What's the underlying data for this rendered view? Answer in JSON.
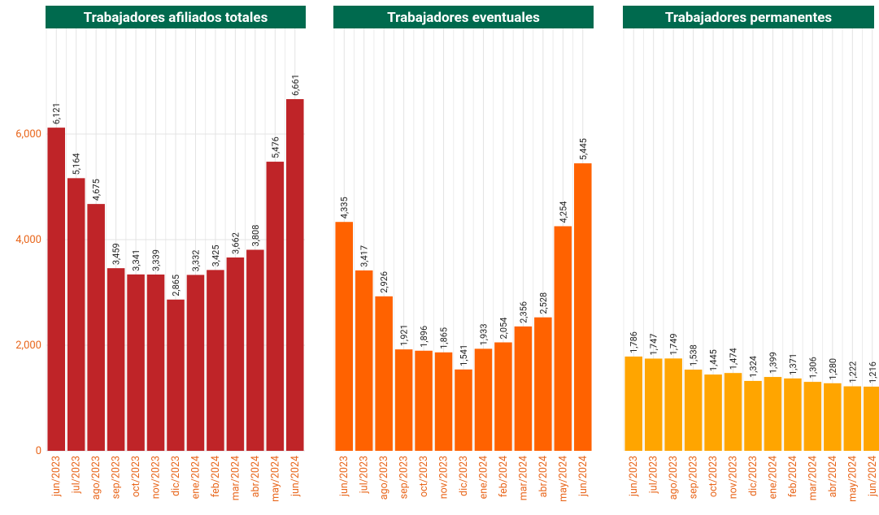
{
  "chart_data": [
    {
      "type": "bar",
      "title": "Trabajadores afiliados totales",
      "categories": [
        "jun/2023",
        "jul/2023",
        "ago/2023",
        "sep/2023",
        "oct/2023",
        "nov/2023",
        "dic/2023",
        "ene/2024",
        "feb/2024",
        "mar/2024",
        "abr/2024",
        "may/2024",
        "jun/2024"
      ],
      "values": [
        6121,
        5164,
        4675,
        3459,
        3341,
        3339,
        2865,
        3332,
        3425,
        3662,
        3808,
        5476,
        6661
      ],
      "value_labels": [
        "6,121",
        "5,164",
        "4,675",
        "3,459",
        "3,341",
        "3,339",
        "2,865",
        "3,332",
        "3,425",
        "3,662",
        "3,808",
        "5,476",
        "6,661"
      ],
      "color": "#bf2428",
      "ylim": [
        0,
        8000
      ],
      "yticks": [
        0,
        {
          "value": 2000,
          "label": "2,000"
        },
        {
          "value": 4000,
          "label": "4,000"
        },
        {
          "value": 6000,
          "label": "6,000"
        }
      ],
      "grid": true
    },
    {
      "type": "bar",
      "title": "Trabajadores eventuales",
      "categories": [
        "jun/2023",
        "jul/2023",
        "ago/2023",
        "sep/2023",
        "oct/2023",
        "nov/2023",
        "dic/2023",
        "ene/2024",
        "feb/2024",
        "mar/2024",
        "abr/2024",
        "may/2024",
        "jun/2024"
      ],
      "values": [
        4335,
        3417,
        2926,
        1921,
        1896,
        1865,
        1541,
        1933,
        2054,
        2356,
        2528,
        4254,
        5445
      ],
      "value_labels": [
        "4,335",
        "3,417",
        "2,926",
        "1,921",
        "1,896",
        "1,865",
        "1,541",
        "1,933",
        "2,054",
        "2,356",
        "2,528",
        "4,254",
        "5,445"
      ],
      "color": "#ff6200",
      "ylim": [
        0,
        8000
      ],
      "grid": true
    },
    {
      "type": "bar",
      "title": "Trabajadores permanentes",
      "categories": [
        "jun/2023",
        "jul/2023",
        "ago/2023",
        "sep/2023",
        "oct/2023",
        "nov/2023",
        "dic/2023",
        "ene/2024",
        "feb/2024",
        "mar/2024",
        "abr/2024",
        "may/2024",
        "jun/2024"
      ],
      "values": [
        1786,
        1747,
        1749,
        1538,
        1445,
        1474,
        1324,
        1399,
        1371,
        1306,
        1280,
        1222,
        1216
      ],
      "value_labels": [
        "1,786",
        "1,747",
        "1,749",
        "1,538",
        "1,445",
        "1,474",
        "1,324",
        "1,399",
        "1,371",
        "1,306",
        "1,280",
        "1,222",
        "1,216"
      ],
      "color": "#ffa500",
      "ylim": [
        0,
        8000
      ],
      "grid": true
    }
  ]
}
